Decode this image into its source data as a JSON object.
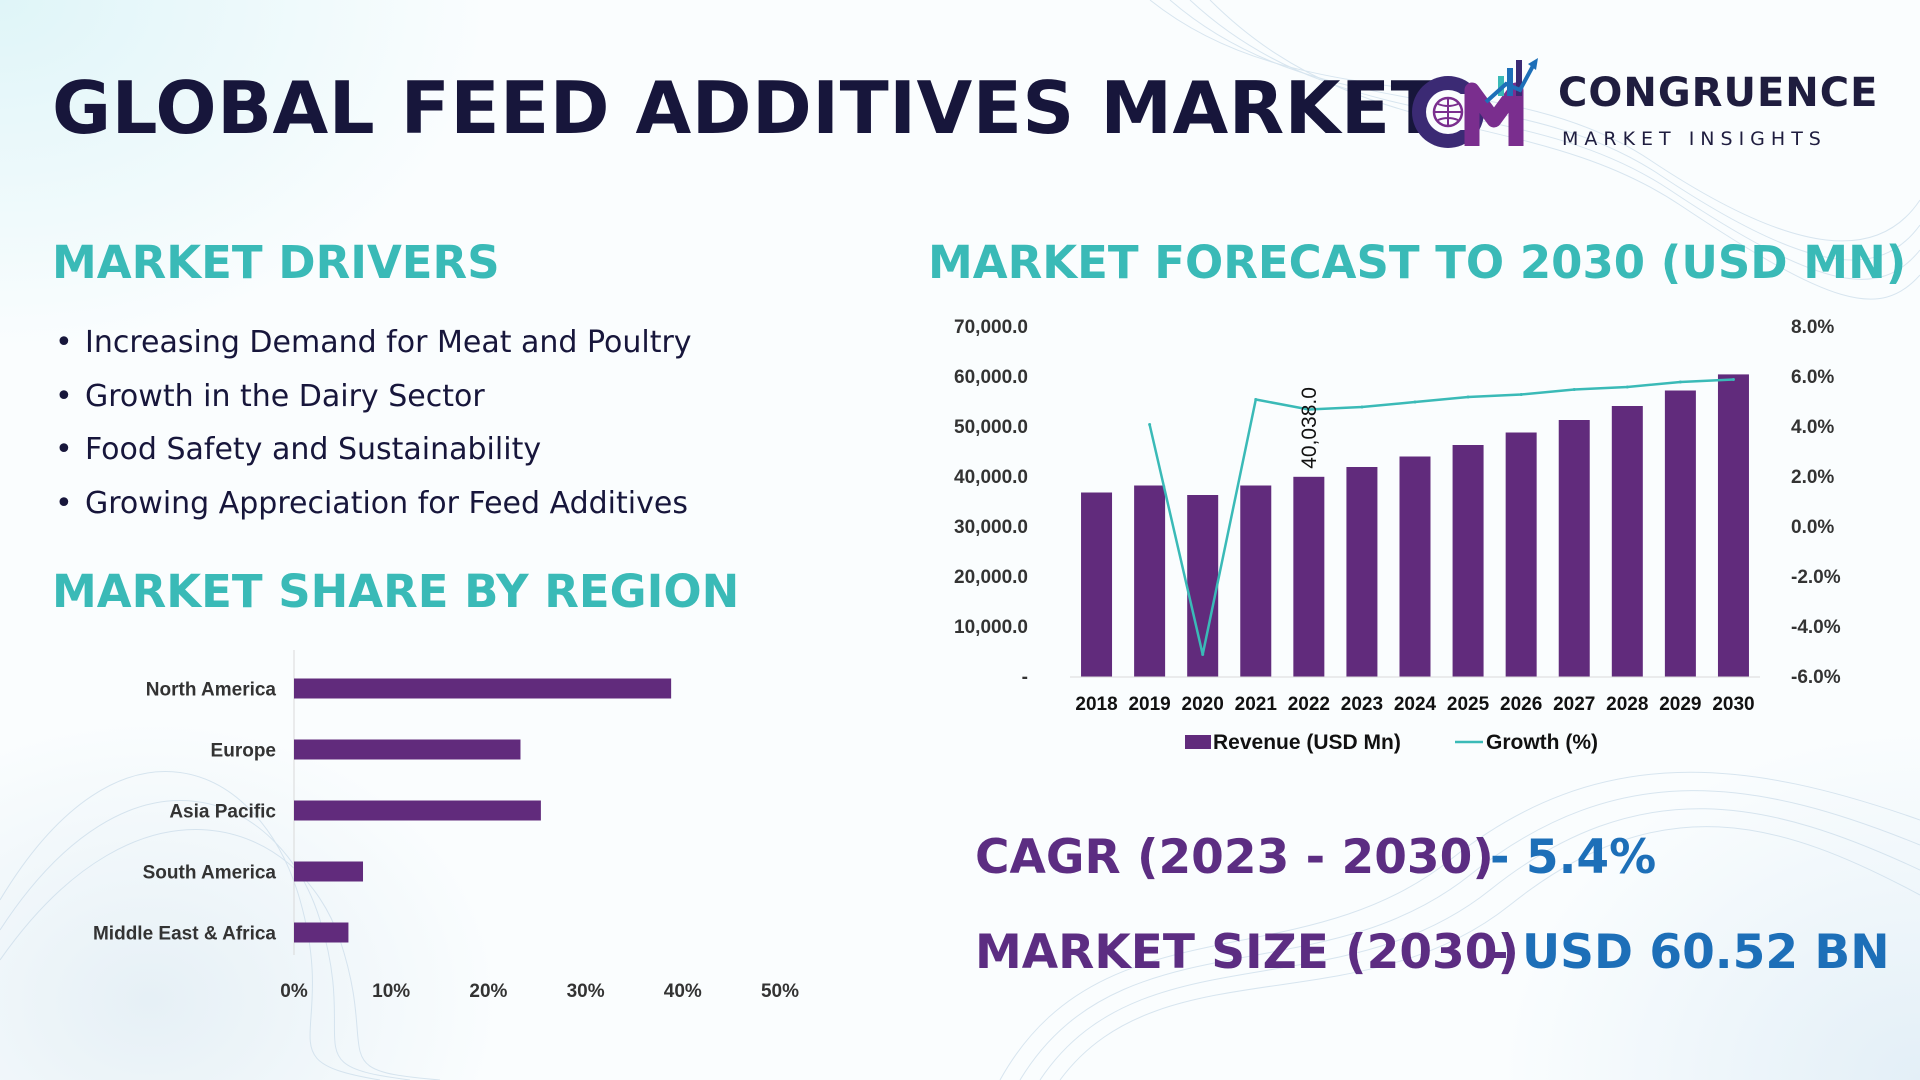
{
  "title": "GLOBAL FEED ADDITIVES MARKET",
  "logo": {
    "name": "CONGRUENCE",
    "subtitle": "MARKET INSIGHTS",
    "initials": "CM",
    "colors": [
      "#3b2a74",
      "#7a2e8e",
      "#1d6fb8",
      "#3abab7"
    ]
  },
  "drivers": {
    "heading": "MARKET DRIVERS",
    "items": [
      "Increasing Demand for Meat and Poultry",
      "Growth in the Dairy Sector",
      "Food Safety and Sustainability",
      "Growing Appreciation for Feed Additives"
    ]
  },
  "region": {
    "heading": "MARKET SHARE BY REGION"
  },
  "forecast": {
    "heading": "MARKET FORECAST TO 2030 (USD MN)"
  },
  "summary": {
    "cagr_label": "CAGR (2023 - 2030)",
    "cagr_value": "- 5.4%",
    "size_label": "MARKET SIZE (2030)",
    "size_dash": "–",
    "size_value": "USD 60.52 BN"
  },
  "colors": {
    "heading": "#3abab7",
    "title": "#17163b",
    "bar": "#612b7c",
    "line": "#3abab7",
    "label_purple": "#5c2d82",
    "value_blue": "#1d6fb8"
  },
  "chart_data": [
    {
      "type": "bar",
      "orientation": "horizontal",
      "categories": [
        "North America",
        "Europe",
        "Asia Pacific",
        "South America",
        "Middle East & Africa"
      ],
      "values": [
        38.8,
        23.3,
        25.4,
        7.1,
        5.6
      ],
      "xticks": [
        "0%",
        "10%",
        "20%",
        "30%",
        "40%",
        "50%"
      ],
      "xlim": [
        0,
        50
      ]
    },
    {
      "type": "bar",
      "categories": [
        "2018",
        "2019",
        "2020",
        "2021",
        "2022",
        "2023",
        "2024",
        "2025",
        "2026",
        "2027",
        "2028",
        "2029",
        "2030"
      ],
      "series": [
        {
          "name": "Revenue (USD Mn)",
          "type": "bar",
          "axis": "left",
          "values": [
            36900,
            38300,
            36400,
            38300,
            40038,
            42000,
            44100,
            46400,
            48900,
            51400,
            54200,
            57300,
            60520
          ]
        },
        {
          "name": "Growth (%)",
          "type": "line",
          "axis": "right",
          "values": [
            null,
            4.1,
            -5.1,
            5.1,
            4.7,
            4.8,
            5.0,
            5.2,
            5.3,
            5.5,
            5.6,
            5.8,
            5.9
          ]
        }
      ],
      "data_labels": [
        {
          "category": "2022",
          "text": "40,038.0"
        }
      ],
      "ylim_left": [
        0,
        70000
      ],
      "yticks_left": [
        "-",
        "10,000.0",
        "20,000.0",
        "30,000.0",
        "40,000.0",
        "50,000.0",
        "60,000.0",
        "70,000.0"
      ],
      "ylim_right": [
        -6,
        8
      ],
      "yticks_right": [
        "-6.0%",
        "-4.0%",
        "-2.0%",
        "0.0%",
        "2.0%",
        "4.0%",
        "6.0%",
        "8.0%"
      ],
      "legend_position": "bottom"
    }
  ]
}
